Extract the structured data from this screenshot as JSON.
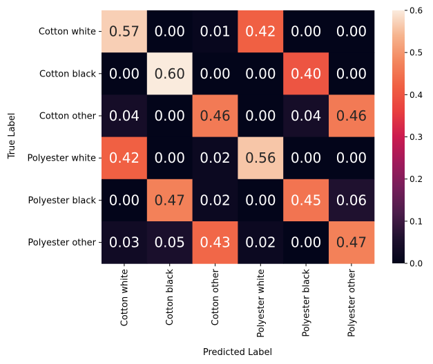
{
  "chart_data": {
    "type": "heatmap",
    "title": "",
    "xlabel": "Predicted Label",
    "ylabel": "True Label",
    "x_categories": [
      "Cotton white",
      "Cotton black",
      "Cotton other",
      "Polyester white",
      "Polyester black",
      "Polyester other"
    ],
    "y_categories": [
      "Cotton white",
      "Cotton black",
      "Cotton other",
      "Polyester white",
      "Polyester black",
      "Polyester other"
    ],
    "values": [
      [
        0.57,
        0.0,
        0.01,
        0.42,
        0.0,
        0.0
      ],
      [
        0.0,
        0.6,
        0.0,
        0.0,
        0.4,
        0.0
      ],
      [
        0.04,
        0.0,
        0.46,
        0.0,
        0.04,
        0.46
      ],
      [
        0.42,
        0.0,
        0.02,
        0.56,
        0.0,
        0.0
      ],
      [
        0.0,
        0.47,
        0.02,
        0.0,
        0.45,
        0.06
      ],
      [
        0.03,
        0.05,
        0.43,
        0.02,
        0.0,
        0.47
      ]
    ],
    "annotation_format": "0.00",
    "colorbar": {
      "colormap": "rocket",
      "range": [
        0.0,
        0.6
      ],
      "ticks": [
        "0.0",
        "0.1",
        "0.2",
        "0.3",
        "0.4",
        "0.5",
        "0.6"
      ]
    }
  }
}
